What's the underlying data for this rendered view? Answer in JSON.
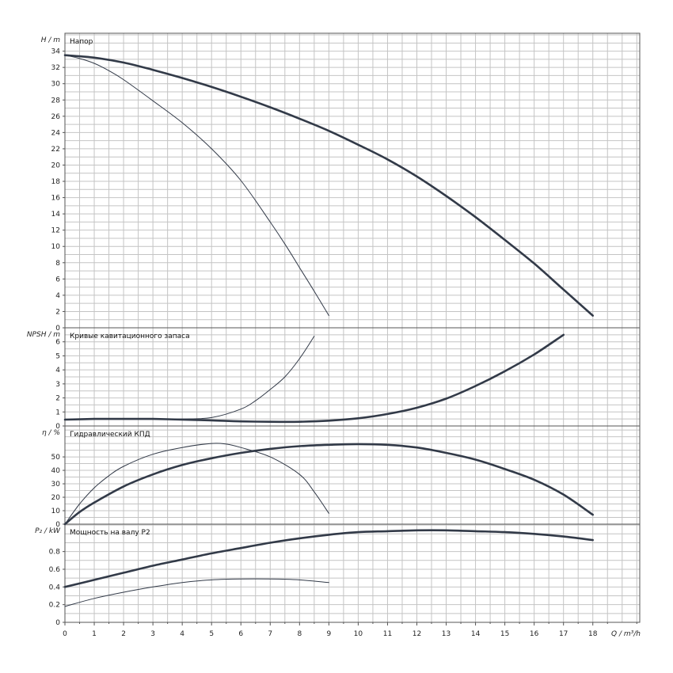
{
  "chart_data": [
    {
      "type": "line",
      "title": "Напор",
      "ylabel": "H / m",
      "xlabel": "Q / m³/h",
      "xlim": [
        0,
        19.6
      ],
      "ylim": [
        0,
        36.2
      ],
      "yticks": [
        "0",
        "2",
        "4",
        "6",
        "8",
        "10",
        "12",
        "14",
        "16",
        "18",
        "20",
        "22",
        "24",
        "26",
        "28",
        "30",
        "32",
        "34"
      ],
      "grid": true,
      "series": [
        {
          "x": [
            0,
            1,
            2,
            3,
            4,
            5,
            6,
            7,
            8,
            9,
            10,
            11,
            12,
            13,
            14,
            15,
            16,
            17,
            18
          ],
          "values": [
            33.5,
            33.2,
            32.6,
            31.7,
            30.7,
            29.6,
            28.4,
            27.1,
            25.7,
            24.2,
            22.5,
            20.7,
            18.6,
            16.2,
            13.6,
            10.8,
            7.9,
            4.7,
            1.5
          ]
        },
        {
          "x": [
            0,
            0.5,
            1,
            1.5,
            2,
            3,
            4,
            5,
            6,
            7,
            7.5,
            8,
            8.5,
            9
          ],
          "values": [
            33.5,
            33.1,
            32.5,
            31.6,
            30.5,
            27.9,
            25.2,
            22.0,
            18.1,
            13.0,
            10.3,
            7.4,
            4.5,
            1.5
          ]
        }
      ]
    },
    {
      "type": "line",
      "title": "Кривые кавитационного запаса",
      "ylabel": "NPSH / m",
      "xlim": [
        0,
        19.6
      ],
      "ylim": [
        0,
        7.0
      ],
      "yticks": [
        "0",
        "1",
        "2",
        "3",
        "4",
        "5",
        "6"
      ],
      "grid": true,
      "series": [
        {
          "x": [
            0,
            1,
            2,
            3,
            4,
            5,
            6,
            7,
            8,
            9,
            10,
            11,
            12,
            13,
            14,
            15,
            16,
            17
          ],
          "values": [
            0.45,
            0.5,
            0.5,
            0.5,
            0.45,
            0.4,
            0.33,
            0.3,
            0.3,
            0.38,
            0.55,
            0.85,
            1.3,
            1.95,
            2.85,
            3.9,
            5.1,
            6.5
          ]
        },
        {
          "x": [
            0,
            1,
            2,
            3,
            4,
            5,
            6,
            6.5,
            7,
            7.5,
            8,
            8.5
          ],
          "values": [
            0.45,
            0.48,
            0.5,
            0.5,
            0.5,
            0.6,
            1.2,
            1.8,
            2.6,
            3.5,
            4.8,
            6.4
          ]
        }
      ]
    },
    {
      "type": "line",
      "title": "Гидравлический КПД",
      "ylabel": "η / %",
      "xlim": [
        0,
        19.6
      ],
      "ylim": [
        0,
        73
      ],
      "yticks": [
        "0",
        "10",
        "20",
        "30",
        "40",
        "50"
      ],
      "grid": true,
      "series": [
        {
          "x": [
            0,
            0.5,
            1,
            2,
            3,
            4,
            5,
            6,
            7,
            8,
            9,
            10,
            11,
            12,
            13,
            14,
            15,
            16,
            17,
            18
          ],
          "values": [
            0,
            9,
            16,
            28,
            37,
            44,
            49,
            53,
            56,
            58,
            59,
            59.5,
            59,
            57,
            53,
            48,
            41,
            33,
            22,
            7
          ]
        },
        {
          "x": [
            0,
            0.5,
            1,
            1.5,
            2,
            3,
            4,
            5,
            5.5,
            6,
            7,
            8,
            8.5,
            9
          ],
          "values": [
            0,
            15,
            27,
            36,
            43,
            52,
            57,
            60,
            59.5,
            57,
            50,
            37,
            24,
            8
          ]
        }
      ]
    },
    {
      "type": "line",
      "title": "Мощность на валу P2",
      "ylabel": "P₂ / kW",
      "xlim": [
        0,
        19.6
      ],
      "ylim": [
        0,
        1.11
      ],
      "yticks": [
        "0",
        "0.2",
        "0.4",
        "0.6",
        "0.8"
      ],
      "xticks": [
        "0",
        "1",
        "2",
        "3",
        "4",
        "5",
        "6",
        "7",
        "8",
        "9",
        "10",
        "11",
        "12",
        "13",
        "14",
        "15",
        "16",
        "17",
        "18"
      ],
      "grid": true,
      "series": [
        {
          "x": [
            0,
            1,
            2,
            3,
            4,
            5,
            6,
            7,
            8,
            9,
            10,
            11,
            12,
            13,
            14,
            15,
            16,
            17,
            18
          ],
          "values": [
            0.4,
            0.48,
            0.56,
            0.64,
            0.71,
            0.78,
            0.84,
            0.9,
            0.95,
            0.99,
            1.02,
            1.03,
            1.04,
            1.04,
            1.03,
            1.02,
            1.0,
            0.97,
            0.93
          ]
        },
        {
          "x": [
            0,
            1,
            2,
            3,
            4,
            5,
            6,
            7,
            8,
            9
          ],
          "values": [
            0.18,
            0.27,
            0.34,
            0.4,
            0.45,
            0.48,
            0.49,
            0.49,
            0.48,
            0.45
          ]
        }
      ]
    }
  ],
  "colors": {
    "curve": "#323a48",
    "grid": "#c4c4c4",
    "frame": "#555555"
  }
}
